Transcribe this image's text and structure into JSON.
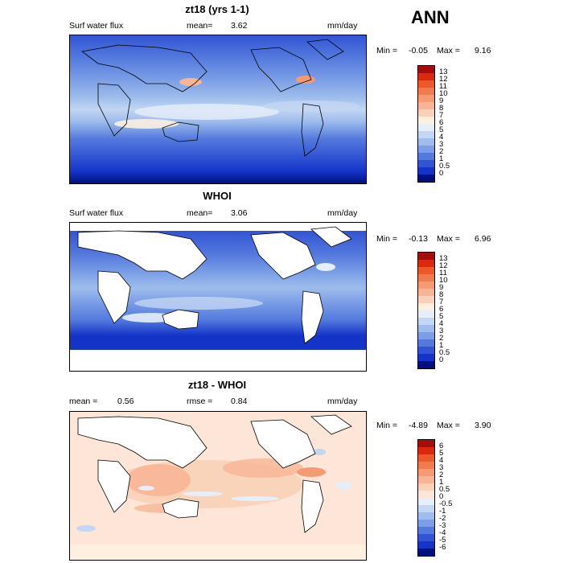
{
  "season": "ANN",
  "panels": [
    {
      "title": "zt18 (yrs 1-1)",
      "left_label": "Surf water flux",
      "mean_label": "mean=",
      "mean_value": "3.62",
      "units": "mm/day",
      "min_label": "Min =",
      "min_value": "-0.05",
      "max_label": "Max =",
      "max_value": "9.16",
      "colorbar": {
        "labels": [
          "13",
          "12",
          "11",
          "10",
          "9",
          "8",
          "7",
          "6",
          "5",
          "4",
          "3",
          "2",
          "1",
          "0.5",
          "0"
        ],
        "colors": [
          "#a50d0d",
          "#d9290f",
          "#ec5a2c",
          "#f07c4e",
          "#f59a72",
          "#f8b596",
          "#fad0b8",
          "#fdf0df",
          "#e6eefa",
          "#c3d6f3",
          "#9ebdec",
          "#7b9ee6",
          "#5479dd",
          "#3254d4",
          "#1434c8",
          "#00107e"
        ]
      }
    },
    {
      "title": "WHOI",
      "left_label": "Surf water flux",
      "mean_label": "mean=",
      "mean_value": "3.06",
      "units": "mm/day",
      "min_label": "Min =",
      "min_value": "-0.13",
      "max_label": "Max =",
      "max_value": "6.96",
      "colorbar": {
        "labels": [
          "13",
          "12",
          "11",
          "10",
          "9",
          "8",
          "7",
          "6",
          "5",
          "4",
          "3",
          "2",
          "1",
          "0.5",
          "0"
        ],
        "colors": [
          "#a50d0d",
          "#d9290f",
          "#ec5a2c",
          "#f07c4e",
          "#f59a72",
          "#f8b596",
          "#fad0b8",
          "#fdf0df",
          "#e6eefa",
          "#c3d6f3",
          "#9ebdec",
          "#7b9ee6",
          "#5479dd",
          "#3254d4",
          "#1434c8",
          "#00107e"
        ]
      }
    },
    {
      "title": "zt18 - WHOI",
      "left_label": "mean =",
      "mean_label": "",
      "mean_value": "0.56",
      "rmse_label": "rmse =",
      "rmse_value": "0.84",
      "units": "mm/day",
      "min_label": "Min =",
      "min_value": "-4.89",
      "max_label": "Max =",
      "max_value": "3.90",
      "colorbar": {
        "labels": [
          "6",
          "5",
          "4",
          "3",
          "2",
          "1",
          "0.5",
          "0",
          "-0.5",
          "-1",
          "-2",
          "-3",
          "-4",
          "-5",
          "-6"
        ],
        "colors": [
          "#a50d0d",
          "#d9290f",
          "#ec5a2c",
          "#f07c4e",
          "#f59a72",
          "#f8b596",
          "#fad0b8",
          "#fde6d8",
          "#e6eefa",
          "#c3d6f3",
          "#9ebdec",
          "#7b9ee6",
          "#5479dd",
          "#3254d4",
          "#1434c8",
          "#00107e"
        ]
      }
    }
  ]
}
